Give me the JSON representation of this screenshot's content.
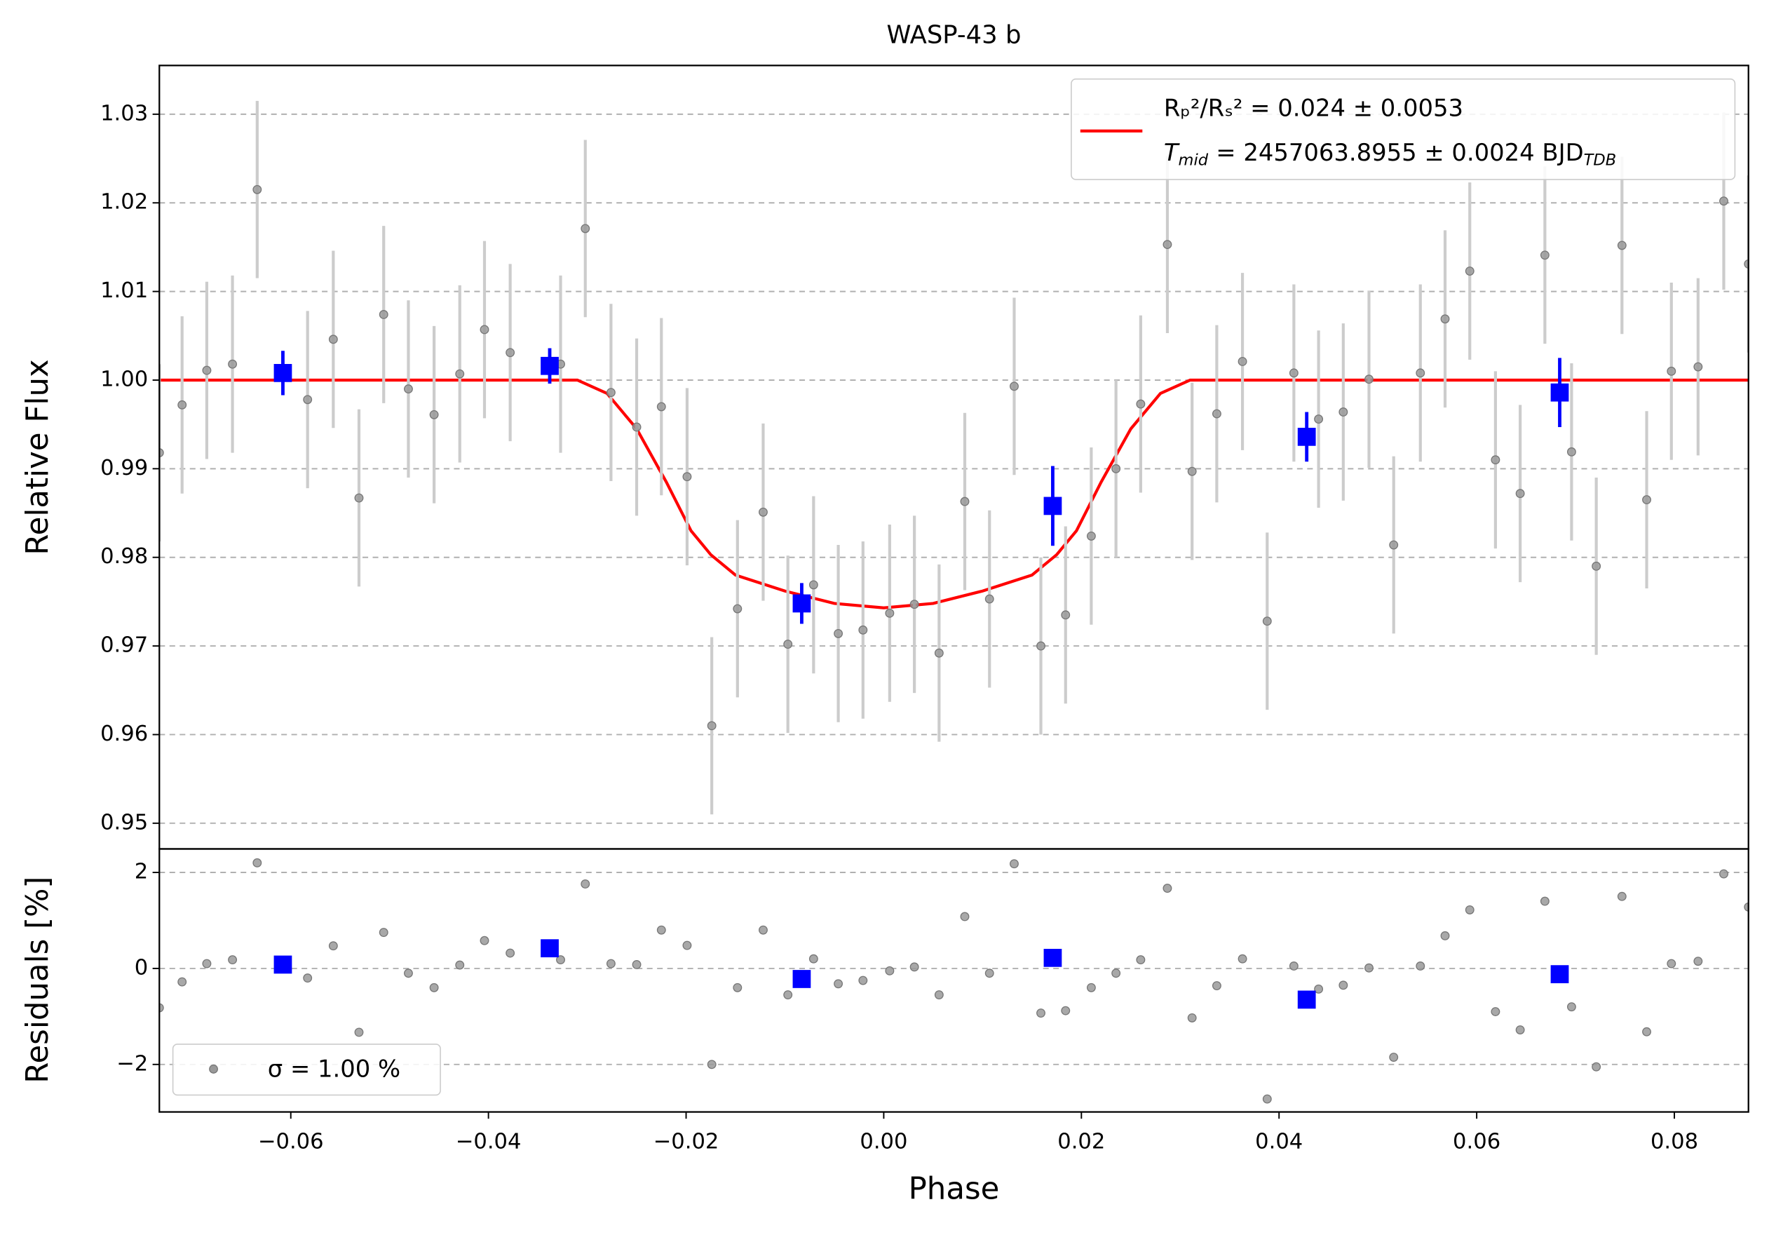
{
  "chart_data": [
    {
      "type": "scatter",
      "title": "WASP-43 b",
      "y_label": "Relative Flux",
      "xlim": [
        -0.0733,
        0.0875
      ],
      "ylim": [
        0.9471,
        1.0355
      ],
      "yticks": [
        0.95,
        0.96,
        0.97,
        0.98,
        0.99,
        {
          "value": 1,
          "label": "1.00"
        },
        1.01,
        1.02,
        1.03
      ],
      "grid": true,
      "legend": "upper right",
      "legend_note": {
        "symbol": "T",
        "symbol_sub": "mid",
        "text": "= 2457063.8955 ± 0.0024 BJD",
        "unit_sub": "TDB"
      },
      "series": [
        {
          "name": "Rₚ²/Rₛ² = 0.024 ± 0.0053",
          "marker": "line",
          "color": "#ff0000",
          "x": [
            -0.0733,
            -0.031,
            -0.028,
            -0.025,
            -0.022,
            -0.0195,
            -0.0175,
            -0.015,
            -0.01,
            -0.005,
            0,
            0.005,
            0.01,
            0.015,
            0.0175,
            0.0195,
            0.022,
            0.025,
            0.028,
            0.031,
            0.0875
          ],
          "values": [
            1,
            1,
            0.9985,
            0.9945,
            0.9885,
            0.983,
            0.9803,
            0.978,
            0.9762,
            0.9748,
            0.9743,
            0.9748,
            0.9762,
            0.978,
            0.9803,
            0.983,
            0.9885,
            0.9945,
            0.9985,
            1,
            1
          ]
        },
        {
          "marker": "circle",
          "color": "#999999",
          "error_color": "#cccccc",
          "error": 0.01,
          "x": [
            -0.0733,
            -0.071,
            -0.0685,
            -0.0659,
            -0.0634,
            -0.0583,
            -0.0557,
            -0.0531,
            -0.0506,
            -0.0481,
            -0.0455,
            -0.0429,
            -0.0404,
            -0.0378,
            -0.0327,
            -0.0302,
            -0.0276,
            -0.025,
            -0.0225,
            -0.0199,
            -0.0174,
            -0.0148,
            -0.0122,
            -0.0097,
            -0.0071,
            -0.0046,
            -0.0021,
            0.0006,
            0.0031,
            0.0056,
            0.0082,
            0.0107,
            0.0132,
            0.0159,
            0.0184,
            0.021,
            0.0235,
            0.026,
            0.0287,
            0.0312,
            0.0337,
            0.0363,
            0.0388,
            0.0415,
            0.044,
            0.0465,
            0.0491,
            0.0516,
            0.0543,
            0.0568,
            0.0593,
            0.0619,
            0.0644,
            0.0669,
            0.0696,
            0.0721,
            0.0747,
            0.0772,
            0.0797,
            0.0824,
            0.085,
            0.0875
          ],
          "values": [
            0.9918,
            0.9972,
            1.0011,
            1.0018,
            1.0215,
            0.9978,
            1.0046,
            0.9867,
            1.0074,
            0.999,
            0.9961,
            1.0007,
            1.0057,
            1.0031,
            1.0018,
            1.0171,
            0.9986,
            0.9947,
            0.997,
            0.9891,
            0.961,
            0.9742,
            0.9851,
            0.9702,
            0.9769,
            0.9714,
            0.9718,
            0.9737,
            0.9747,
            0.9692,
            0.9863,
            0.9753,
            0.9993,
            0.97,
            0.9735,
            0.9824,
            0.99,
            0.9973,
            1.0153,
            0.9897,
            0.9962,
            1.0021,
            0.9728,
            1.0008,
            0.9956,
            0.9964,
            1.0001,
            0.9814,
            1.0008,
            1.0069,
            1.0123,
            0.991,
            0.9872,
            1.0141,
            0.9919,
            0.979,
            1.0152,
            0.9865,
            1.001,
            1.0015,
            1.0202,
            1.0131
          ]
        },
        {
          "marker": "square",
          "color": "#0000ff",
          "error_color": "#0000ff",
          "x": [
            -0.0608,
            -0.0338,
            -0.0083,
            0.0171,
            0.0428,
            0.0684
          ],
          "values": [
            1.0008,
            1.0016,
            0.9748,
            0.9858,
            0.9936,
            0.9986
          ],
          "errors": [
            0.0025,
            0.002,
            0.0023,
            0.0045,
            0.0028,
            0.0039
          ]
        }
      ]
    },
    {
      "type": "scatter",
      "x_label": "Phase",
      "y_label": "Residuals [%]",
      "xlim": [
        -0.0733,
        0.0875
      ],
      "ylim": [
        -2.99,
        2.49
      ],
      "xticks": [
        {
          "value": -0.06,
          "label": "−0.06"
        },
        {
          "value": -0.04,
          "label": "−0.04"
        },
        {
          "value": -0.02,
          "label": "−0.02"
        },
        {
          "value": 0,
          "label": "0.00"
        },
        0.02,
        0.04,
        0.06,
        0.08
      ],
      "yticks": [
        {
          "value": -2,
          "label": "−2"
        },
        0,
        2
      ],
      "grid": true,
      "legend": "lower left",
      "series": [
        {
          "name": "σ = 1.00 %",
          "marker": "circle",
          "color": "#999999",
          "x": [
            -0.0733,
            -0.071,
            -0.0685,
            -0.0659,
            -0.0634,
            -0.0583,
            -0.0557,
            -0.0531,
            -0.0506,
            -0.0481,
            -0.0455,
            -0.0429,
            -0.0404,
            -0.0378,
            -0.0327,
            -0.0302,
            -0.0276,
            -0.025,
            -0.0225,
            -0.0199,
            -0.0174,
            -0.0148,
            -0.0122,
            -0.0097,
            -0.0071,
            -0.0046,
            -0.0021,
            0.0006,
            0.0031,
            0.0056,
            0.0082,
            0.0107,
            0.0132,
            0.0159,
            0.0184,
            0.021,
            0.0235,
            0.026,
            0.0287,
            0.0312,
            0.0337,
            0.0363,
            0.0388,
            0.0415,
            0.044,
            0.0465,
            0.0491,
            0.0516,
            0.0543,
            0.0568,
            0.0593,
            0.0619,
            0.0644,
            0.0669,
            0.0696,
            0.0721,
            0.0747,
            0.0772,
            0.0797,
            0.0824,
            0.085,
            0.0875
          ],
          "values": [
            -0.82,
            -0.28,
            0.1,
            0.18,
            2.2,
            -0.2,
            0.47,
            -1.33,
            0.75,
            -0.1,
            -0.4,
            0.07,
            0.58,
            0.32,
            0.18,
            1.76,
            0.1,
            0.08,
            0.8,
            0.48,
            -2.0,
            -0.4,
            0.8,
            -0.55,
            0.2,
            -0.32,
            -0.25,
            -0.05,
            0.03,
            -0.55,
            1.08,
            -0.1,
            2.18,
            -0.93,
            -0.88,
            -0.4,
            -0.1,
            0.18,
            1.67,
            -1.03,
            -0.36,
            0.2,
            -2.72,
            0.05,
            -0.43,
            -0.35,
            0.01,
            -1.85,
            0.05,
            0.68,
            1.22,
            -0.9,
            -1.28,
            1.4,
            -0.8,
            -2.05,
            1.5,
            -1.32,
            0.1,
            0.15,
            1.97,
            1.28
          ]
        },
        {
          "marker": "square",
          "color": "#0000ff",
          "x": [
            -0.0608,
            -0.0338,
            -0.0083,
            0.0171,
            0.0428,
            0.0684
          ],
          "values": [
            0.08,
            0.42,
            -0.22,
            0.22,
            -0.65,
            -0.12
          ]
        }
      ]
    }
  ]
}
